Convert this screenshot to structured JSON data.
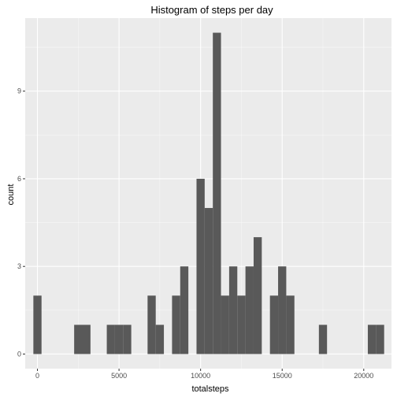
{
  "chart_data": {
    "type": "bar",
    "title": "Histogram of steps per day",
    "xlabel": "totalsteps",
    "ylabel": "count",
    "xlim": [
      -750,
      21700
    ],
    "ylim": [
      -0.5,
      11.5
    ],
    "x_ticks": [
      0,
      5000,
      10000,
      15000,
      20000
    ],
    "x_tick_labels": [
      "0",
      "5000",
      "10000",
      "15000",
      "20000"
    ],
    "y_ticks": [
      0,
      3,
      6,
      9
    ],
    "y_tick_labels": [
      "0",
      "3",
      "6",
      "9"
    ],
    "bin_width": 500,
    "bins": [
      {
        "start": -250,
        "count": 2
      },
      {
        "start": 2250,
        "count": 1
      },
      {
        "start": 2750,
        "count": 1
      },
      {
        "start": 4250,
        "count": 1
      },
      {
        "start": 4750,
        "count": 1
      },
      {
        "start": 5250,
        "count": 1
      },
      {
        "start": 6750,
        "count": 2
      },
      {
        "start": 7250,
        "count": 1
      },
      {
        "start": 8250,
        "count": 2
      },
      {
        "start": 8750,
        "count": 3
      },
      {
        "start": 9750,
        "count": 6
      },
      {
        "start": 10250,
        "count": 5
      },
      {
        "start": 10750,
        "count": 11
      },
      {
        "start": 11250,
        "count": 2
      },
      {
        "start": 11750,
        "count": 3
      },
      {
        "start": 12250,
        "count": 2
      },
      {
        "start": 12750,
        "count": 3
      },
      {
        "start": 13250,
        "count": 4
      },
      {
        "start": 13750,
        "count": 0
      },
      {
        "start": 14250,
        "count": 2
      },
      {
        "start": 14750,
        "count": 3
      },
      {
        "start": 15250,
        "count": 2
      },
      {
        "start": 17250,
        "count": 1
      },
      {
        "start": 20250,
        "count": 1
      },
      {
        "start": 20750,
        "count": 1
      }
    ],
    "grid": true,
    "colors": {
      "panel_background": "#ebebeb",
      "grid": "#ffffff",
      "bar_fill": "#595959"
    }
  }
}
